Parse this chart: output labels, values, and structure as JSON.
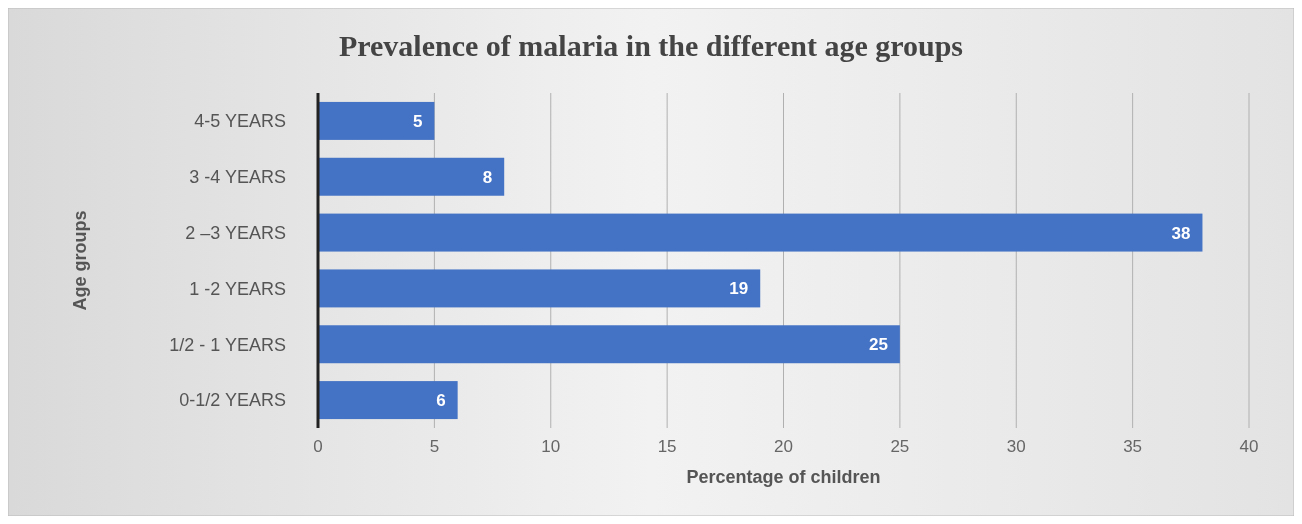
{
  "chart_data": {
    "type": "bar",
    "orientation": "horizontal",
    "title": "Prevalence of malaria in the different age groups",
    "xlabel": "Percentage of children",
    "ylabel": "Age groups",
    "categories": [
      "4-5 YEARS",
      "3 -4 YEARS",
      "2 –3 YEARS",
      "1 -2 YEARS",
      "1/2 - 1 YEARS",
      "0-1/2 YEARS"
    ],
    "values": [
      5,
      8,
      38,
      19,
      25,
      6
    ],
    "color": "#4472c4",
    "data_labels": true,
    "xlim": [
      0,
      40
    ],
    "xticks": [
      0,
      5,
      10,
      15,
      20,
      25,
      30,
      35,
      40
    ],
    "grid": "x"
  }
}
